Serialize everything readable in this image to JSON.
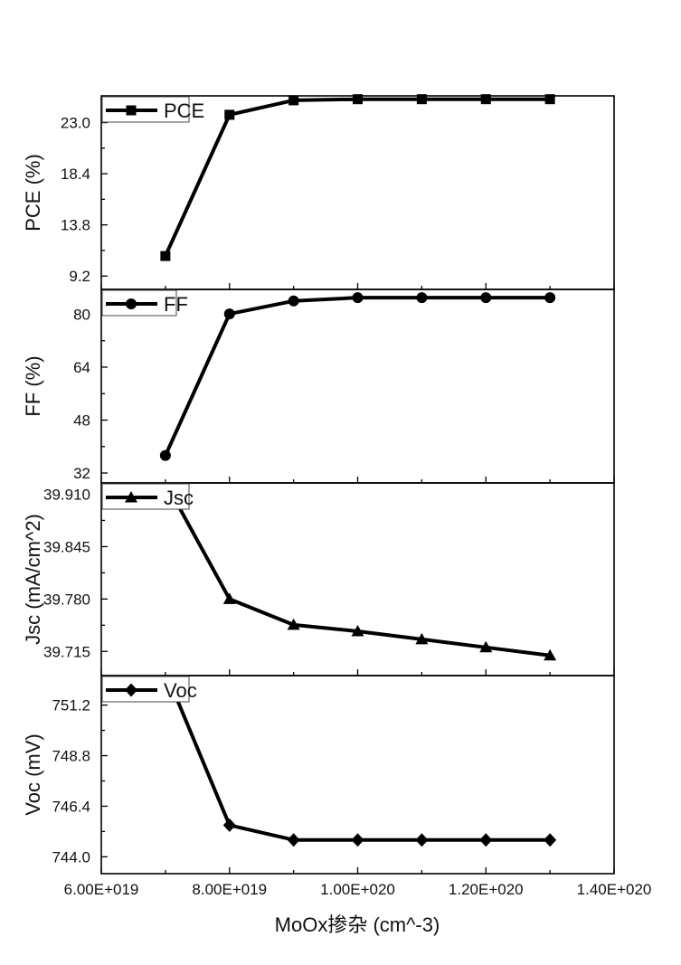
{
  "chart_data": {
    "type": "line",
    "xlabel": "MoOx掺杂 (cm^-3)",
    "x_ticks": [
      "6.00E+019",
      "8.00E+019",
      "1.00E+020",
      "1.20E+020",
      "1.40E+020"
    ],
    "xlim": [
      6e+19,
      1.4e+20
    ],
    "x": [
      7e+19,
      8e+19,
      9e+19,
      1e+20,
      1.1e+20,
      1.2e+20,
      1.3e+20
    ],
    "grid": false,
    "legend_position": "top-left",
    "panels": [
      {
        "series_name": "PCE",
        "ylabel": "PCE (%)",
        "marker": "square",
        "ylim": [
          8.0,
          25.4
        ],
        "y_ticks": [
          "9.2",
          "13.8",
          "18.4",
          "23.0"
        ],
        "y_tick_values": [
          9.2,
          13.8,
          18.4,
          23.0
        ],
        "values": [
          11.0,
          23.7,
          25.0,
          25.1,
          25.1,
          25.1,
          25.1
        ]
      },
      {
        "series_name": "FF",
        "ylabel": "FF (%)",
        "marker": "circle",
        "ylim": [
          29.0,
          87.5
        ],
        "y_ticks": [
          "32",
          "48",
          "64",
          "80"
        ],
        "y_tick_values": [
          32,
          48,
          64,
          80
        ],
        "values": [
          37.3,
          80.1,
          84.0,
          85.0,
          85.0,
          85.0,
          85.0
        ]
      },
      {
        "series_name": "Jsc",
        "ylabel": "Jsc (mA/cm^2)",
        "marker": "triangle",
        "ylim": [
          39.685,
          39.924
        ],
        "y_ticks": [
          "39.715",
          "39.780",
          "39.845",
          "39.910"
        ],
        "y_tick_values": [
          39.715,
          39.78,
          39.845,
          39.91
        ],
        "values": [
          39.925,
          39.78,
          39.748,
          39.74,
          39.73,
          39.72,
          39.71
        ]
      },
      {
        "series_name": "Voc",
        "ylabel": "Voc (mV)",
        "marker": "diamond",
        "ylim": [
          743.2,
          752.6
        ],
        "y_ticks": [
          "744.0",
          "746.4",
          "748.8",
          "751.2"
        ],
        "y_tick_values": [
          744.0,
          746.4,
          748.8,
          751.2
        ],
        "values": [
          752.8,
          745.5,
          744.8,
          744.8,
          744.8,
          744.8,
          744.8
        ]
      }
    ]
  }
}
